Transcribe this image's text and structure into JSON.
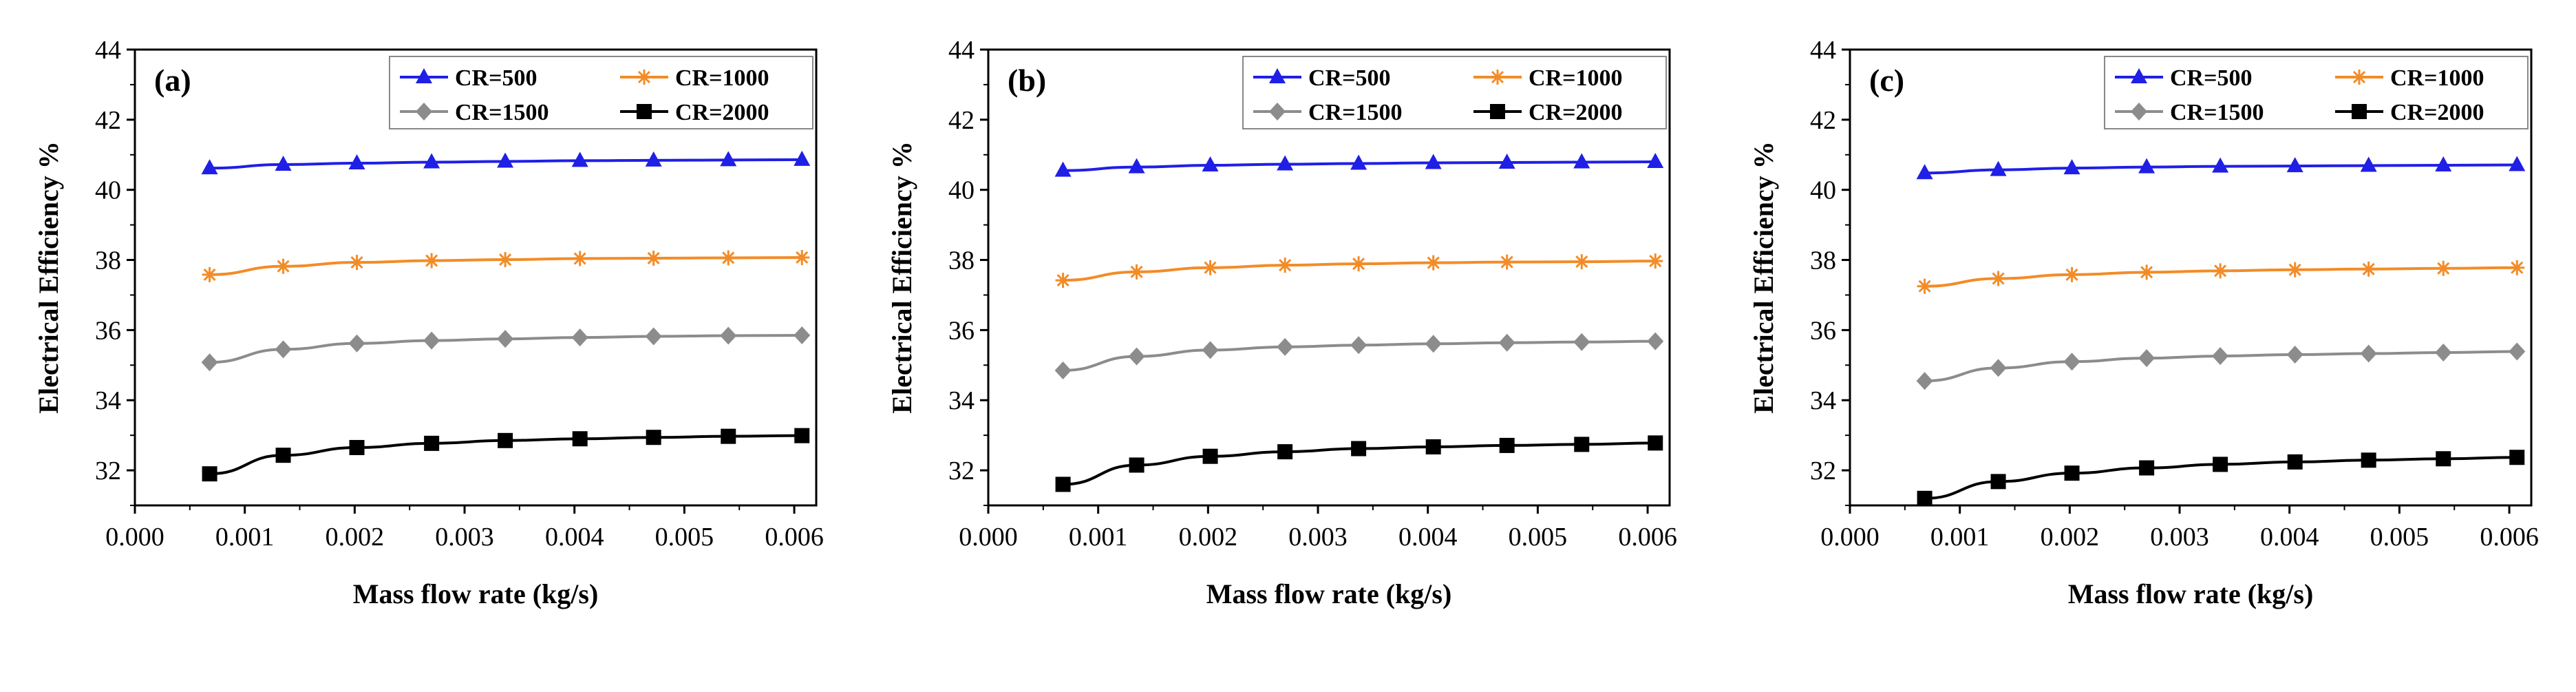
{
  "chart_data": [
    {
      "type": "line",
      "panel_label": "(a)",
      "xlabel": "Mass flow rate (kg/s)",
      "ylabel": "Electrical Efficiency %",
      "xlim": [
        0.0,
        0.0062
      ],
      "ylim": [
        31.0,
        44.0
      ],
      "xticks": [
        0.0,
        0.001,
        0.002,
        0.003,
        0.004,
        0.005,
        0.006
      ],
      "xtick_labels": [
        "0.000",
        "0.001",
        "0.002",
        "0.003",
        "0.004",
        "0.005",
        "0.006"
      ],
      "yticks": [
        32,
        34,
        36,
        38,
        40,
        42,
        44
      ],
      "ytick_labels": [
        "32",
        "34",
        "36",
        "38",
        "40",
        "42",
        "44"
      ],
      "x": [
        0.00068,
        0.00135,
        0.00202,
        0.0027,
        0.00337,
        0.00405,
        0.00472,
        0.0054,
        0.00607
      ],
      "series": [
        {
          "name": "CR=500",
          "color": "#1f1fe6",
          "marker": "triangle",
          "values": [
            40.62,
            40.72,
            40.76,
            40.79,
            40.81,
            40.83,
            40.84,
            40.85,
            40.86
          ]
        },
        {
          "name": "CR=1000",
          "color": "#f28c28",
          "marker": "star",
          "values": [
            37.58,
            37.82,
            37.93,
            37.98,
            38.01,
            38.04,
            38.05,
            38.06,
            38.07
          ]
        },
        {
          "name": "CR=1500",
          "color": "#8c8c8c",
          "marker": "diamond",
          "values": [
            35.08,
            35.45,
            35.62,
            35.7,
            35.75,
            35.79,
            35.82,
            35.84,
            35.85
          ]
        },
        {
          "name": "CR=2000",
          "color": "#000000",
          "marker": "square",
          "values": [
            31.9,
            32.43,
            32.65,
            32.77,
            32.85,
            32.9,
            32.94,
            32.97,
            32.99
          ]
        }
      ]
    },
    {
      "type": "line",
      "panel_label": "(b)",
      "xlabel": "Mass flow rate (kg/s)",
      "ylabel": "Electrical Efficiency %",
      "xlim": [
        0.0,
        0.0062
      ],
      "ylim": [
        31.0,
        44.0
      ],
      "xticks": [
        0.0,
        0.001,
        0.002,
        0.003,
        0.004,
        0.005,
        0.006
      ],
      "xtick_labels": [
        "0.000",
        "0.001",
        "0.002",
        "0.003",
        "0.004",
        "0.005",
        "0.006"
      ],
      "yticks": [
        32,
        34,
        36,
        38,
        40,
        42,
        44
      ],
      "ytick_labels": [
        "32",
        "34",
        "36",
        "38",
        "40",
        "42",
        "44"
      ],
      "x": [
        0.00068,
        0.00135,
        0.00202,
        0.0027,
        0.00337,
        0.00405,
        0.00472,
        0.0054,
        0.00607
      ],
      "series": [
        {
          "name": "CR=500",
          "color": "#1f1fe6",
          "marker": "triangle",
          "values": [
            40.55,
            40.65,
            40.7,
            40.73,
            40.75,
            40.77,
            40.78,
            40.79,
            40.8
          ]
        },
        {
          "name": "CR=1000",
          "color": "#f28c28",
          "marker": "star",
          "values": [
            37.42,
            37.66,
            37.78,
            37.85,
            37.89,
            37.92,
            37.94,
            37.95,
            37.97
          ]
        },
        {
          "name": "CR=1500",
          "color": "#8c8c8c",
          "marker": "diamond",
          "values": [
            34.85,
            35.25,
            35.43,
            35.52,
            35.57,
            35.61,
            35.64,
            35.66,
            35.68
          ]
        },
        {
          "name": "CR=2000",
          "color": "#000000",
          "marker": "square",
          "values": [
            31.6,
            32.15,
            32.4,
            32.53,
            32.62,
            32.67,
            32.71,
            32.74,
            32.78
          ]
        }
      ]
    },
    {
      "type": "line",
      "panel_label": "(c)",
      "xlabel": "Mass flow rate (kg/s)",
      "ylabel": "Electrical  Efficiency %",
      "xlim": [
        0.0,
        0.0062
      ],
      "ylim": [
        31.0,
        44.0
      ],
      "xticks": [
        0.0,
        0.001,
        0.002,
        0.003,
        0.004,
        0.005,
        0.006
      ],
      "xtick_labels": [
        "0.000",
        "0.001",
        "0.002",
        "0.003",
        "0.004",
        "0.005",
        "0.006"
      ],
      "yticks": [
        32,
        34,
        36,
        38,
        40,
        42,
        44
      ],
      "ytick_labels": [
        "32",
        "34",
        "36",
        "38",
        "40",
        "42",
        "44"
      ],
      "x": [
        0.00068,
        0.00135,
        0.00202,
        0.0027,
        0.00337,
        0.00405,
        0.00472,
        0.0054,
        0.00607
      ],
      "series": [
        {
          "name": "CR=500",
          "color": "#1f1fe6",
          "marker": "triangle",
          "values": [
            40.48,
            40.57,
            40.62,
            40.65,
            40.67,
            40.68,
            40.69,
            40.7,
            40.71
          ]
        },
        {
          "name": "CR=1000",
          "color": "#f28c28",
          "marker": "star",
          "values": [
            37.25,
            37.47,
            37.58,
            37.65,
            37.69,
            37.72,
            37.74,
            37.76,
            37.78
          ]
        },
        {
          "name": "CR=1500",
          "color": "#8c8c8c",
          "marker": "diamond",
          "values": [
            34.55,
            34.92,
            35.1,
            35.2,
            35.26,
            35.3,
            35.33,
            35.36,
            35.39
          ]
        },
        {
          "name": "CR=2000",
          "color": "#000000",
          "marker": "square",
          "values": [
            31.2,
            31.68,
            31.92,
            32.07,
            32.17,
            32.24,
            32.29,
            32.33,
            32.37
          ]
        }
      ]
    }
  ]
}
